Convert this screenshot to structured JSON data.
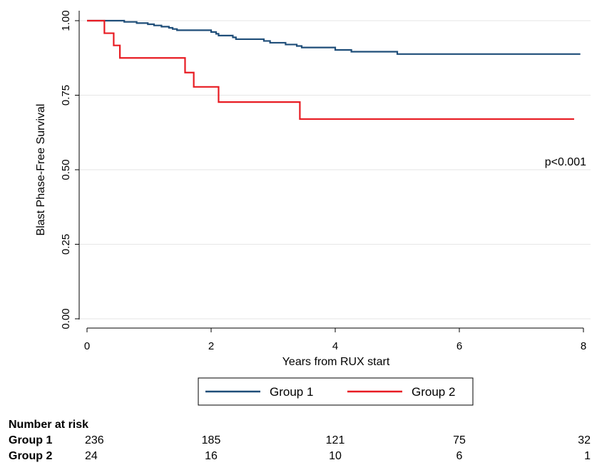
{
  "chart_data": {
    "type": "line",
    "subtype": "kaplan-meier",
    "title": "",
    "xlabel": "Years from RUX start",
    "ylabel": "Blast Phase-Free Survival",
    "xlim": [
      0,
      8
    ],
    "ylim": [
      0,
      1
    ],
    "x_ticks": [
      0,
      2,
      4,
      6,
      8
    ],
    "x_tick_labels": [
      "0",
      "2",
      "4",
      "6",
      "8"
    ],
    "y_ticks": [
      0,
      0.25,
      0.5,
      0.75,
      1.0
    ],
    "y_tick_labels": [
      "0.00",
      "0.25",
      "0.50",
      "0.75",
      "1.00"
    ],
    "grid": "horizontal",
    "legend_position": "bottom",
    "annotation": "p<0.001",
    "series": [
      {
        "name": "Group 1",
        "color": "#1f4e79",
        "steps": [
          [
            0,
            1.0
          ],
          [
            0.6,
            0.996
          ],
          [
            0.8,
            0.992
          ],
          [
            0.98,
            0.988
          ],
          [
            1.08,
            0.984
          ],
          [
            1.2,
            0.98
          ],
          [
            1.32,
            0.976
          ],
          [
            1.38,
            0.972
          ],
          [
            1.45,
            0.968
          ],
          [
            2.0,
            0.962
          ],
          [
            2.08,
            0.956
          ],
          [
            2.12,
            0.95
          ],
          [
            2.35,
            0.944
          ],
          [
            2.4,
            0.938
          ],
          [
            2.85,
            0.932
          ],
          [
            2.95,
            0.926
          ],
          [
            3.2,
            0.92
          ],
          [
            3.38,
            0.915
          ],
          [
            3.46,
            0.91
          ],
          [
            4.0,
            0.902
          ],
          [
            4.26,
            0.896
          ],
          [
            5.0,
            0.888
          ],
          [
            7.95,
            0.888
          ]
        ]
      },
      {
        "name": "Group 2",
        "color": "#e81c23",
        "steps": [
          [
            0,
            1.0
          ],
          [
            0.28,
            0.958
          ],
          [
            0.43,
            0.917
          ],
          [
            0.53,
            0.875
          ],
          [
            1.58,
            0.826
          ],
          [
            1.72,
            0.778
          ],
          [
            2.12,
            0.727
          ],
          [
            3.43,
            0.67
          ],
          [
            7.85,
            0.67
          ]
        ]
      }
    ],
    "risk_table": {
      "title": "Number at risk",
      "times": [
        0,
        2,
        4,
        6,
        8
      ],
      "rows": [
        {
          "label": "Group 1",
          "values": [
            "236",
            "185",
            "121",
            "75",
            "32"
          ]
        },
        {
          "label": "Group 2",
          "values": [
            "24",
            "16",
            "10",
            "6",
            "1"
          ]
        }
      ]
    }
  }
}
